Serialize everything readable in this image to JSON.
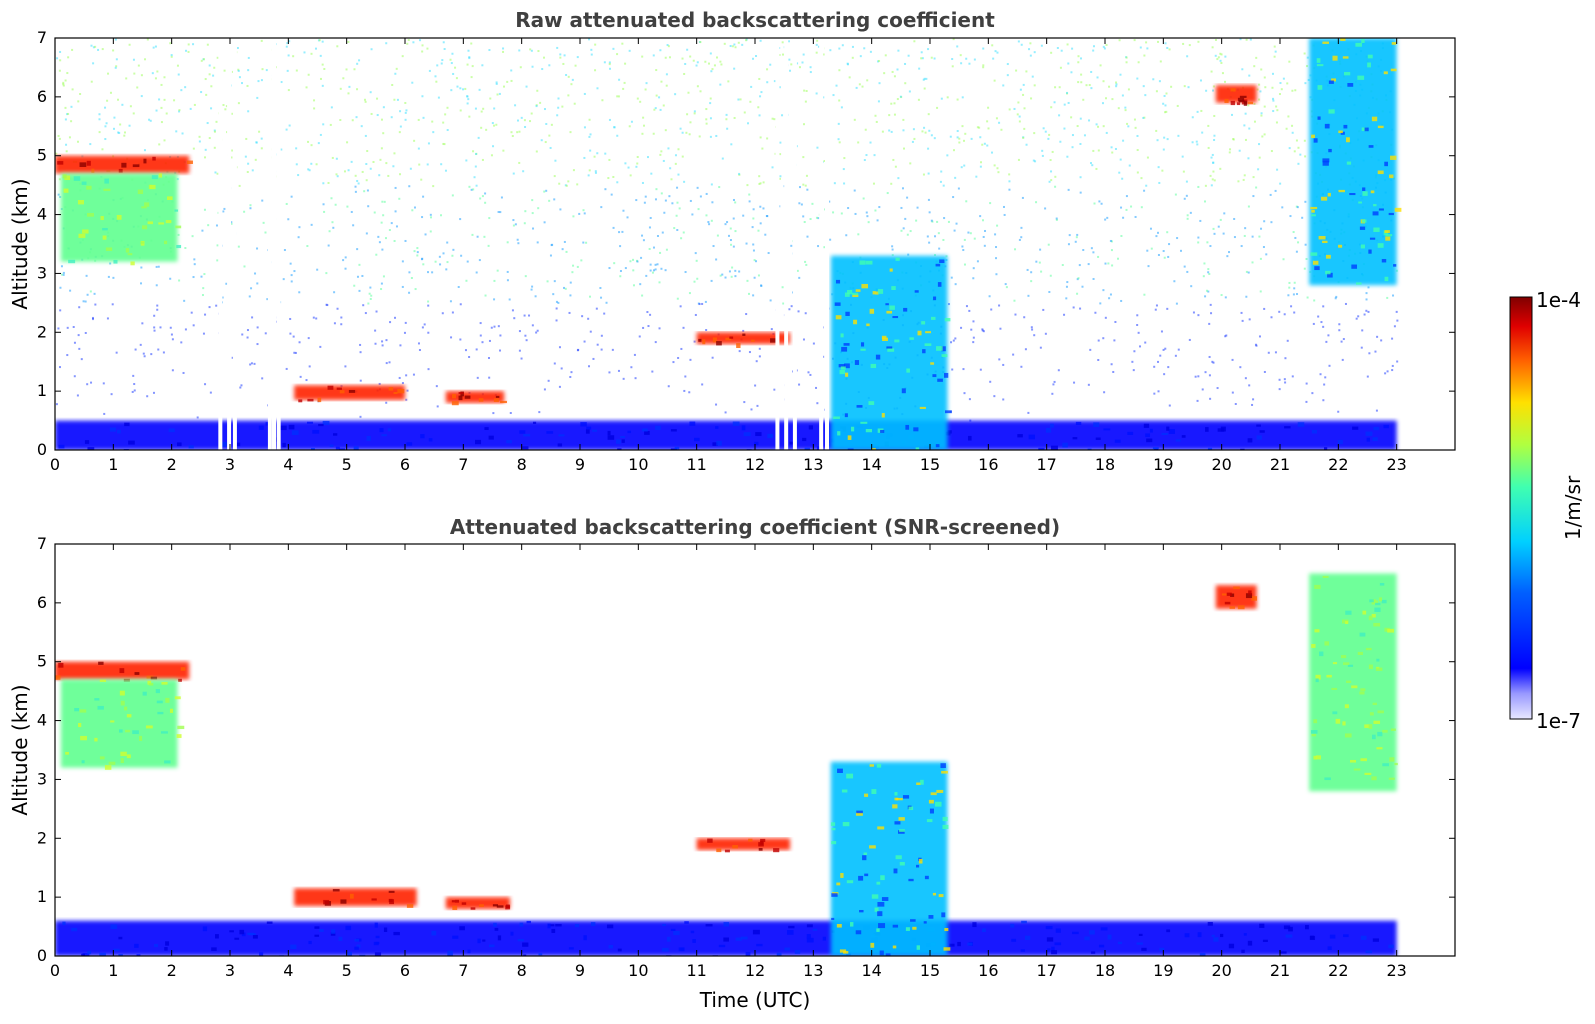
{
  "chart_data": [
    {
      "type": "heatmap",
      "title": "Raw attenuated backscattering coefficient",
      "xlabel": "",
      "ylabel": "Altitude (km)",
      "xlim": [
        0,
        24
      ],
      "ylim": [
        0,
        7
      ],
      "x_ticks": [
        "0",
        "1",
        "2",
        "3",
        "4",
        "5",
        "6",
        "7",
        "8",
        "9",
        "10",
        "11",
        "12",
        "13",
        "14",
        "15",
        "16",
        "17",
        "18",
        "19",
        "20",
        "21",
        "22",
        "23"
      ],
      "y_ticks": [
        "0",
        "1",
        "2",
        "3",
        "4",
        "5",
        "6",
        "7"
      ],
      "data_extent_hours": [
        0,
        23
      ],
      "features": [
        {
          "name": "boundary layer",
          "t": [
            0,
            23
          ],
          "alt": [
            0,
            0.5
          ],
          "level": "low-mid"
        },
        {
          "name": "background noise",
          "t": [
            0,
            23
          ],
          "alt": [
            0.5,
            7
          ],
          "level": "noise increasing with altitude"
        },
        {
          "name": "cloud layer",
          "t": [
            0,
            2.3
          ],
          "alt": [
            4.7,
            5.0
          ],
          "level": "high"
        },
        {
          "name": "virga",
          "t": [
            0.1,
            2.1
          ],
          "alt": [
            3.2,
            4.7
          ],
          "level": "mid"
        },
        {
          "name": "low cloud",
          "t": [
            4.1,
            6.0
          ],
          "alt": [
            0.85,
            1.1
          ],
          "level": "high"
        },
        {
          "name": "low cloud",
          "t": [
            6.7,
            7.7
          ],
          "alt": [
            0.8,
            1.0
          ],
          "level": "high"
        },
        {
          "name": "cloud layer",
          "t": [
            11.0,
            12.6
          ],
          "alt": [
            1.8,
            2.0
          ],
          "level": "high"
        },
        {
          "name": "convective column",
          "t": [
            13.3,
            15.3
          ],
          "alt": [
            0,
            3.3
          ],
          "level": "mid-high"
        },
        {
          "name": "cloud",
          "t": [
            19.9,
            20.6
          ],
          "alt": [
            5.9,
            6.2
          ],
          "level": "high"
        },
        {
          "name": "cirrus streak",
          "t": [
            21.5,
            23.0
          ],
          "alt": [
            2.8,
            7.0
          ],
          "level": "mid-high"
        }
      ],
      "gaps_hours": [
        2.8,
        2.95,
        3.05,
        3.65,
        3.72,
        3.8,
        12.35,
        12.5,
        12.65,
        13.1,
        13.2
      ]
    },
    {
      "type": "heatmap",
      "title": "Attenuated backscattering coefficient (SNR-screened)",
      "xlabel": "Time (UTC)",
      "ylabel": "Altitude (km)",
      "xlim": [
        0,
        24
      ],
      "ylim": [
        0,
        7
      ],
      "x_ticks": [
        "0",
        "1",
        "2",
        "3",
        "4",
        "5",
        "6",
        "7",
        "8",
        "9",
        "10",
        "11",
        "12",
        "13",
        "14",
        "15",
        "16",
        "17",
        "18",
        "19",
        "20",
        "21",
        "22",
        "23"
      ],
      "y_ticks": [
        "0",
        "1",
        "2",
        "3",
        "4",
        "5",
        "6",
        "7"
      ],
      "data_extent_hours": [
        0,
        23
      ],
      "features": [
        {
          "name": "boundary layer",
          "t": [
            0,
            23
          ],
          "alt": [
            0,
            0.6
          ],
          "level": "low-mid"
        },
        {
          "name": "cloud layer",
          "t": [
            0,
            2.3
          ],
          "alt": [
            4.7,
            5.0
          ],
          "level": "high"
        },
        {
          "name": "virga",
          "t": [
            0.1,
            2.1
          ],
          "alt": [
            3.2,
            4.7
          ],
          "level": "mid"
        },
        {
          "name": "low cloud",
          "t": [
            4.1,
            6.2
          ],
          "alt": [
            0.85,
            1.15
          ],
          "level": "high"
        },
        {
          "name": "low cloud",
          "t": [
            6.7,
            7.8
          ],
          "alt": [
            0.8,
            1.0
          ],
          "level": "high"
        },
        {
          "name": "cloud layer",
          "t": [
            11.0,
            12.6
          ],
          "alt": [
            1.8,
            2.0
          ],
          "level": "high"
        },
        {
          "name": "convective column",
          "t": [
            13.3,
            15.3
          ],
          "alt": [
            0,
            3.3
          ],
          "level": "mid-high"
        },
        {
          "name": "cloud",
          "t": [
            19.9,
            20.6
          ],
          "alt": [
            5.9,
            6.3
          ],
          "level": "high"
        },
        {
          "name": "cirrus streak",
          "t": [
            21.5,
            23.0
          ],
          "alt": [
            2.8,
            6.5
          ],
          "level": "mid"
        }
      ]
    }
  ],
  "colorbar": {
    "min_label": "1e-7",
    "max_label": "1e-4",
    "unit_label": "1/m/sr",
    "scale": "log",
    "colormap": "jet"
  },
  "colors": {
    "low": "#0000ff",
    "mid": "#00ff80",
    "high": "#ff2000",
    "max": "#8b0000",
    "min": "#e6e6ff"
  }
}
